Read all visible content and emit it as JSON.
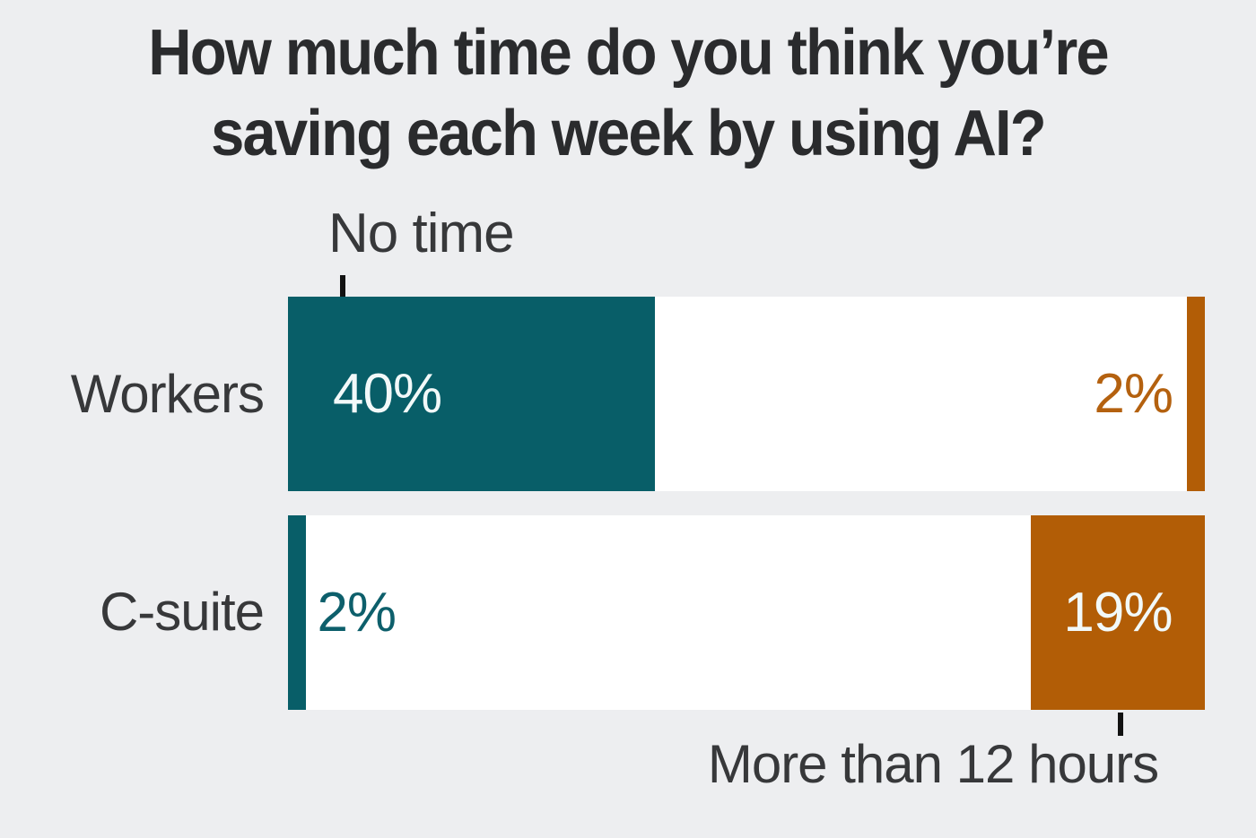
{
  "title": {
    "line1": "How much time do you think you’re",
    "line2": "saving each week by using AI?"
  },
  "annotations": {
    "no_time": "No time",
    "more_than_12": "More than 12 hours"
  },
  "rows": [
    {
      "label": "Workers",
      "no_time_pct": 40,
      "no_time_display": "40%",
      "more_than_12_pct": 2,
      "more_than_12_display": "2%"
    },
    {
      "label": "C-suite",
      "no_time_pct": 2,
      "no_time_display": "2%",
      "more_than_12_pct": 19,
      "more_than_12_display": "19%"
    }
  ],
  "colors": {
    "background": "#edeef0",
    "bar_track": "#ffffff",
    "teal": "#085e68",
    "orange": "#b25d06",
    "teal_value_text": "#0d5f6b",
    "orange_value_text": "#b4610f",
    "value_on_bar": "#f2f9f9",
    "label_text": "#37383a",
    "title_text": "#2a2b2d",
    "tick": "#121212"
  },
  "chart_data": {
    "type": "bar",
    "orientation": "horizontal",
    "title": "How much time do you think you’re saving each week by using AI?",
    "categories": [
      "Workers",
      "C-suite"
    ],
    "series": [
      {
        "name": "No time",
        "values": [
          40,
          2
        ],
        "color": "#085e68",
        "anchor": "left"
      },
      {
        "name": "More than 12 hours",
        "values": [
          2,
          19
        ],
        "color": "#b25d06",
        "anchor": "right"
      }
    ],
    "unit": "%",
    "xlim": [
      0,
      100
    ],
    "grid": false,
    "legend_position": "none",
    "annotations": [
      "No time",
      "More than 12 hours"
    ]
  }
}
